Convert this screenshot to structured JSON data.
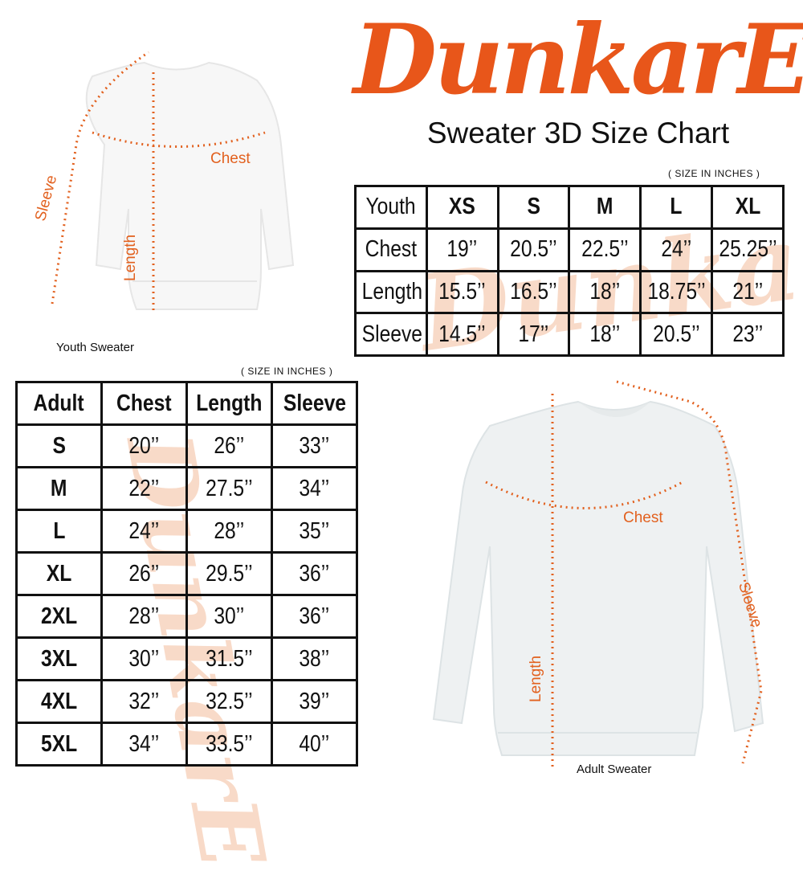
{
  "logo": {
    "text": "DunkarE",
    "color": "#e8561a"
  },
  "title": "Sweater 3D Size Chart",
  "youth": {
    "caption": "Youth Sweater",
    "note": "( SIZE IN INCHES )",
    "header": [
      "Youth",
      "XS",
      "S",
      "M",
      "L",
      "XL"
    ],
    "rows": [
      [
        "Chest",
        "19’’",
        "20.5’’",
        "22.5’’",
        "24’’",
        "25.25’’"
      ],
      [
        "Length",
        "15.5’’",
        "16.5’’",
        "18’’",
        "18.75’’",
        "21’’"
      ],
      [
        "Sleeve",
        "14.5’’",
        "17’’",
        "18’’",
        "20.5’’",
        "23’’"
      ]
    ],
    "labels": {
      "chest": "Chest",
      "length": "Length",
      "sleeve": "Sleeve"
    }
  },
  "adult": {
    "caption": "Adult Sweater",
    "note": "( SIZE IN INCHES )",
    "header": [
      "Adult",
      "Chest",
      "Length",
      "Sleeve"
    ],
    "rows": [
      [
        "S",
        "20’’",
        "26’’",
        "33’’"
      ],
      [
        "M",
        "22’’",
        "27.5’’",
        "34’’"
      ],
      [
        "L",
        "24’’",
        "28’’",
        "35’’"
      ],
      [
        "XL",
        "26’’",
        "29.5’’",
        "36’’"
      ],
      [
        "2XL",
        "28’’",
        "30’’",
        "36’’"
      ],
      [
        "3XL",
        "30’’",
        "31.5’’",
        "38’’"
      ],
      [
        "4XL",
        "32’’",
        "32.5’’",
        "39’’"
      ],
      [
        "5XL",
        "34’’",
        "33.5’’",
        "40’’"
      ]
    ],
    "labels": {
      "chest": "Chest",
      "length": "Length",
      "sleeve": "Sleeve"
    }
  },
  "colors": {
    "accent": "#e2611f",
    "border": "#111111",
    "watermark": "#f6cbb1"
  }
}
